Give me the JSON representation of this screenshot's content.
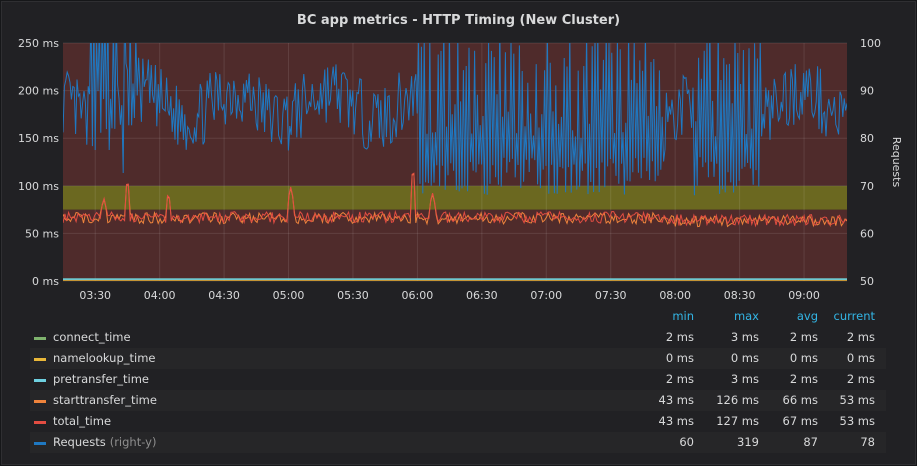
{
  "chart_data": {
    "type": "line",
    "title": "BC app metrics - HTTP Timing (New Cluster)",
    "x_ticks": [
      "03:30",
      "04:00",
      "04:30",
      "05:00",
      "05:30",
      "06:00",
      "06:30",
      "07:00",
      "07:30",
      "08:00",
      "08:30",
      "09:00"
    ],
    "x_range_minutes": [
      195,
      560
    ],
    "y_left": {
      "unit": "ms",
      "range": [
        0,
        250
      ],
      "ticks": [
        "0 ms",
        "50 ms",
        "100 ms",
        "150 ms",
        "200 ms",
        "250 ms"
      ]
    },
    "y_right": {
      "label": "Requests",
      "range": [
        50,
        100
      ],
      "ticks": [
        "50",
        "60",
        "70",
        "80",
        "90",
        "100"
      ]
    },
    "thresholds": [
      {
        "from": 0,
        "to": 75,
        "color": "#4f2b2b",
        "status": "critical"
      },
      {
        "from": 75,
        "to": 100,
        "color": "#6b6820",
        "status": "warning"
      },
      {
        "from": 100,
        "to": 250,
        "color": "#4f2b2b",
        "status": "critical"
      }
    ],
    "grid": true,
    "series": [
      {
        "name": "connect_time",
        "color": "#7eb26d",
        "axis": "left",
        "typical": 2,
        "min": 2,
        "max": 3,
        "avg": 2,
        "current": 2
      },
      {
        "name": "namelookup_time",
        "color": "#eab839",
        "axis": "left",
        "typical": 0,
        "min": 0,
        "max": 0,
        "avg": 0,
        "current": 0
      },
      {
        "name": "pretransfer_time",
        "color": "#6ed0e0",
        "axis": "left",
        "typical": 2,
        "min": 2,
        "max": 3,
        "avg": 2,
        "current": 2
      },
      {
        "name": "starttransfer_time",
        "color": "#ef843c",
        "axis": "left",
        "typical": 66,
        "min": 43,
        "max": 126,
        "avg": 66,
        "current": 53
      },
      {
        "name": "total_time",
        "color": "#e24d42",
        "axis": "left",
        "typical": 67,
        "min": 43,
        "max": 127,
        "avg": 67,
        "current": 53
      },
      {
        "name": "Requests",
        "color": "#1f78c1",
        "axis": "right",
        "typical": 87,
        "min": 60,
        "max": 319,
        "avg": 87,
        "current": 78
      }
    ],
    "spikes_ms": [
      {
        "minute": 214,
        "value": 87
      },
      {
        "minute": 225,
        "value": 105
      },
      {
        "minute": 244,
        "value": 92
      },
      {
        "minute": 301,
        "value": 98
      },
      {
        "minute": 358,
        "value": 116
      },
      {
        "minute": 367,
        "value": 92
      }
    ]
  },
  "legend": {
    "headers": {
      "min": "min",
      "max": "max",
      "avg": "avg",
      "current": "current"
    },
    "rows": [
      {
        "name": "connect_time",
        "min": "2 ms",
        "max": "3 ms",
        "avg": "2 ms",
        "current": "2 ms",
        "color": "#7eb26d"
      },
      {
        "name": "namelookup_time",
        "min": "0 ms",
        "max": "0 ms",
        "avg": "0 ms",
        "current": "0 ms",
        "color": "#eab839"
      },
      {
        "name": "pretransfer_time",
        "min": "2 ms",
        "max": "3 ms",
        "avg": "2 ms",
        "current": "2 ms",
        "color": "#6ed0e0"
      },
      {
        "name": "starttransfer_time",
        "min": "43 ms",
        "max": "126 ms",
        "avg": "66 ms",
        "current": "53 ms",
        "color": "#ef843c"
      },
      {
        "name": "total_time",
        "min": "43 ms",
        "max": "127 ms",
        "avg": "67 ms",
        "current": "53 ms",
        "color": "#e24d42"
      },
      {
        "name": "Requests",
        "axis_note": "(right-y)",
        "min": "60",
        "max": "319",
        "avg": "87",
        "current": "78",
        "color": "#1f78c1"
      }
    ]
  }
}
